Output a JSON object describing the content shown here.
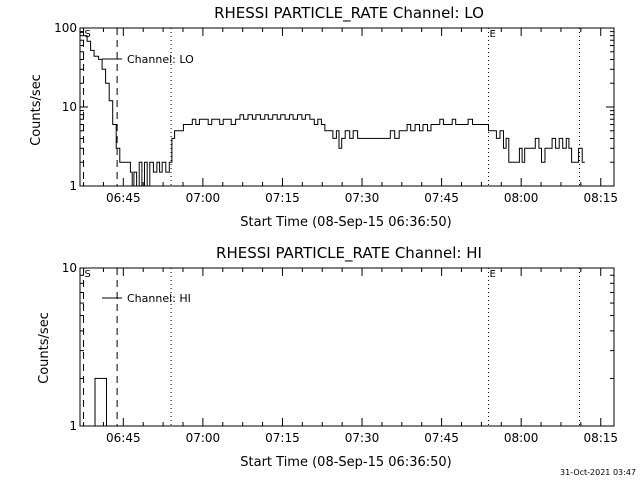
{
  "footer_timestamp": "31-Oct-2021 03:47",
  "colors": {
    "background": "#ffffff",
    "ink": "#000000"
  },
  "chart_data": [
    {
      "type": "line",
      "title": "RHESSI PARTICLE_RATE Channel: LO",
      "xlabel": "Start Time (08-Sep-15 06:36:50)",
      "ylabel": "Counts/sec",
      "y_scale": "log",
      "ylim": [
        1,
        100
      ],
      "y_ticks": [
        1,
        10,
        100
      ],
      "y_tick_labels": [
        "1",
        "10",
        "100"
      ],
      "xlim": [
        "06:36:50",
        "08:17:30"
      ],
      "x_ticks": [
        "06:45",
        "07:00",
        "07:15",
        "07:30",
        "07:45",
        "08:00",
        "08:15"
      ],
      "x_minor_ticks_per_major": 3,
      "legend": {
        "label": "Channel: LO",
        "position": "top-left"
      },
      "vlines": [
        {
          "time": "06:37:30",
          "style": "dashed",
          "label": "S"
        },
        {
          "time": "06:43:50",
          "style": "dashed",
          "label": ""
        },
        {
          "time": "06:54:00",
          "style": "dotted",
          "label": ""
        },
        {
          "time": "07:53:50",
          "style": "dotted",
          "label": "E"
        },
        {
          "time": "08:11:00",
          "style": "dotted",
          "label": ""
        }
      ],
      "series": [
        {
          "name": "Channel: LO",
          "step": true,
          "points": [
            [
              "06:36:50",
              88
            ],
            [
              "06:37:30",
              80
            ],
            [
              "06:38:10",
              68
            ],
            [
              "06:38:50",
              52
            ],
            [
              "06:39:30",
              44
            ],
            [
              "06:40:20",
              40
            ],
            [
              "06:41:00",
              30
            ],
            [
              "06:41:40",
              20
            ],
            [
              "06:42:20",
              12
            ],
            [
              "06:43:00",
              6
            ],
            [
              "06:43:40",
              3
            ],
            [
              "06:44:20",
              2
            ],
            [
              "06:45:00",
              2
            ],
            [
              "06:45:40",
              2
            ],
            [
              "06:46:20",
              1.5
            ],
            [
              "06:46:40",
              1
            ],
            [
              "06:47:00",
              1.5
            ],
            [
              "06:47:30",
              1
            ],
            [
              "06:48:00",
              2
            ],
            [
              "06:48:30",
              1
            ],
            [
              "06:49:00",
              2
            ],
            [
              "06:49:30",
              1
            ],
            [
              "06:50:00",
              2
            ],
            [
              "06:50:40",
              1.5
            ],
            [
              "06:51:20",
              2
            ],
            [
              "06:51:50",
              1.5
            ],
            [
              "06:52:20",
              2
            ],
            [
              "06:53:00",
              1.5
            ],
            [
              "06:53:40",
              2
            ],
            [
              "06:54:10",
              4
            ],
            [
              "06:54:40",
              5
            ],
            [
              "06:55:30",
              5
            ],
            [
              "06:56:20",
              6
            ],
            [
              "06:57:10",
              6
            ],
            [
              "06:58:00",
              7
            ],
            [
              "06:58:40",
              6
            ],
            [
              "06:59:20",
              7
            ],
            [
              "07:00:10",
              7
            ],
            [
              "07:01:00",
              6
            ],
            [
              "07:01:40",
              7
            ],
            [
              "07:02:30",
              7
            ],
            [
              "07:03:10",
              6
            ],
            [
              "07:03:50",
              7
            ],
            [
              "07:04:40",
              7
            ],
            [
              "07:05:20",
              6
            ],
            [
              "07:06:10",
              7
            ],
            [
              "07:07:00",
              8
            ],
            [
              "07:07:40",
              7
            ],
            [
              "07:08:30",
              8
            ],
            [
              "07:09:20",
              7
            ],
            [
              "07:10:00",
              8
            ],
            [
              "07:10:50",
              7
            ],
            [
              "07:11:40",
              8
            ],
            [
              "07:12:20",
              7
            ],
            [
              "07:13:10",
              8
            ],
            [
              "07:14:00",
              7
            ],
            [
              "07:14:40",
              8
            ],
            [
              "07:15:30",
              7
            ],
            [
              "07:16:20",
              8
            ],
            [
              "07:17:00",
              7
            ],
            [
              "07:17:50",
              8
            ],
            [
              "07:18:40",
              7
            ],
            [
              "07:19:20",
              8
            ],
            [
              "07:20:10",
              7
            ],
            [
              "07:21:00",
              6
            ],
            [
              "07:21:40",
              7
            ],
            [
              "07:22:20",
              6
            ],
            [
              "07:23:00",
              5
            ],
            [
              "07:23:40",
              5
            ],
            [
              "07:24:30",
              4
            ],
            [
              "07:25:10",
              5
            ],
            [
              "07:25:40",
              3
            ],
            [
              "07:26:10",
              4
            ],
            [
              "07:26:50",
              5
            ],
            [
              "07:27:40",
              4
            ],
            [
              "07:28:20",
              5
            ],
            [
              "07:29:10",
              4
            ],
            [
              "07:30:00",
              4
            ],
            [
              "07:31:40",
              4
            ],
            [
              "07:33:20",
              4
            ],
            [
              "07:34:40",
              4
            ],
            [
              "07:35:20",
              5
            ],
            [
              "07:36:10",
              4
            ],
            [
              "07:37:00",
              5
            ],
            [
              "07:37:40",
              5
            ],
            [
              "07:38:30",
              6
            ],
            [
              "07:39:10",
              5
            ],
            [
              "07:40:00",
              6
            ],
            [
              "07:40:50",
              5
            ],
            [
              "07:41:30",
              6
            ],
            [
              "07:42:20",
              5
            ],
            [
              "07:43:00",
              6
            ],
            [
              "07:43:50",
              6
            ],
            [
              "07:44:40",
              7
            ],
            [
              "07:45:20",
              6
            ],
            [
              "07:46:10",
              6
            ],
            [
              "07:47:00",
              7
            ],
            [
              "07:47:40",
              6
            ],
            [
              "07:48:30",
              6
            ],
            [
              "07:49:10",
              6
            ],
            [
              "07:50:00",
              7
            ],
            [
              "07:50:50",
              6
            ],
            [
              "07:51:30",
              6
            ],
            [
              "07:52:20",
              6
            ],
            [
              "07:53:10",
              6
            ],
            [
              "07:53:50",
              5
            ],
            [
              "07:54:40",
              5
            ],
            [
              "07:55:20",
              4
            ],
            [
              "07:56:00",
              5
            ],
            [
              "07:56:40",
              3
            ],
            [
              "07:57:10",
              4
            ],
            [
              "07:57:40",
              2
            ],
            [
              "07:58:20",
              2
            ],
            [
              "07:59:00",
              2
            ],
            [
              "07:59:40",
              3
            ],
            [
              "08:00:10",
              2
            ],
            [
              "08:00:40",
              3
            ],
            [
              "08:01:20",
              3
            ],
            [
              "08:02:00",
              3
            ],
            [
              "08:02:40",
              4
            ],
            [
              "08:03:20",
              3
            ],
            [
              "08:03:50",
              2
            ],
            [
              "08:04:30",
              3
            ],
            [
              "08:05:10",
              3
            ],
            [
              "08:05:50",
              4
            ],
            [
              "08:06:30",
              3
            ],
            [
              "08:07:10",
              4
            ],
            [
              "08:07:50",
              3
            ],
            [
              "08:08:30",
              4
            ],
            [
              "08:09:00",
              3
            ],
            [
              "08:09:30",
              2
            ],
            [
              "08:10:10",
              2
            ],
            [
              "08:10:50",
              3
            ],
            [
              "08:11:30",
              2
            ],
            [
              "08:12:00",
              2
            ]
          ]
        }
      ]
    },
    {
      "type": "line",
      "title": "RHESSI PARTICLE_RATE Channel: HI",
      "xlabel": "Start Time (08-Sep-15 06:36:50)",
      "ylabel": "Counts/sec",
      "y_scale": "log",
      "ylim": [
        1,
        10
      ],
      "y_ticks": [
        1,
        10
      ],
      "y_tick_labels": [
        "1",
        "10"
      ],
      "xlim": [
        "06:36:50",
        "08:17:30"
      ],
      "x_ticks": [
        "06:45",
        "07:00",
        "07:15",
        "07:30",
        "07:45",
        "08:00",
        "08:15"
      ],
      "x_minor_ticks_per_major": 3,
      "legend": {
        "label": "Channel: HI",
        "position": "top-left"
      },
      "vlines": [
        {
          "time": "06:37:30",
          "style": "dashed",
          "label": "S"
        },
        {
          "time": "06:43:50",
          "style": "dashed",
          "label": ""
        },
        {
          "time": "06:54:00",
          "style": "dotted",
          "label": ""
        },
        {
          "time": "07:53:50",
          "style": "dotted",
          "label": "E"
        },
        {
          "time": "08:11:00",
          "style": "dotted",
          "label": ""
        }
      ],
      "series": [
        {
          "name": "Channel: HI",
          "step": true,
          "points": [
            [
              "06:38:30",
              1
            ],
            [
              "06:39:00",
              1
            ],
            [
              "06:39:40",
              2
            ],
            [
              "06:41:00",
              2
            ],
            [
              "06:41:40",
              2
            ],
            [
              "06:41:50",
              1
            ]
          ]
        }
      ]
    }
  ]
}
